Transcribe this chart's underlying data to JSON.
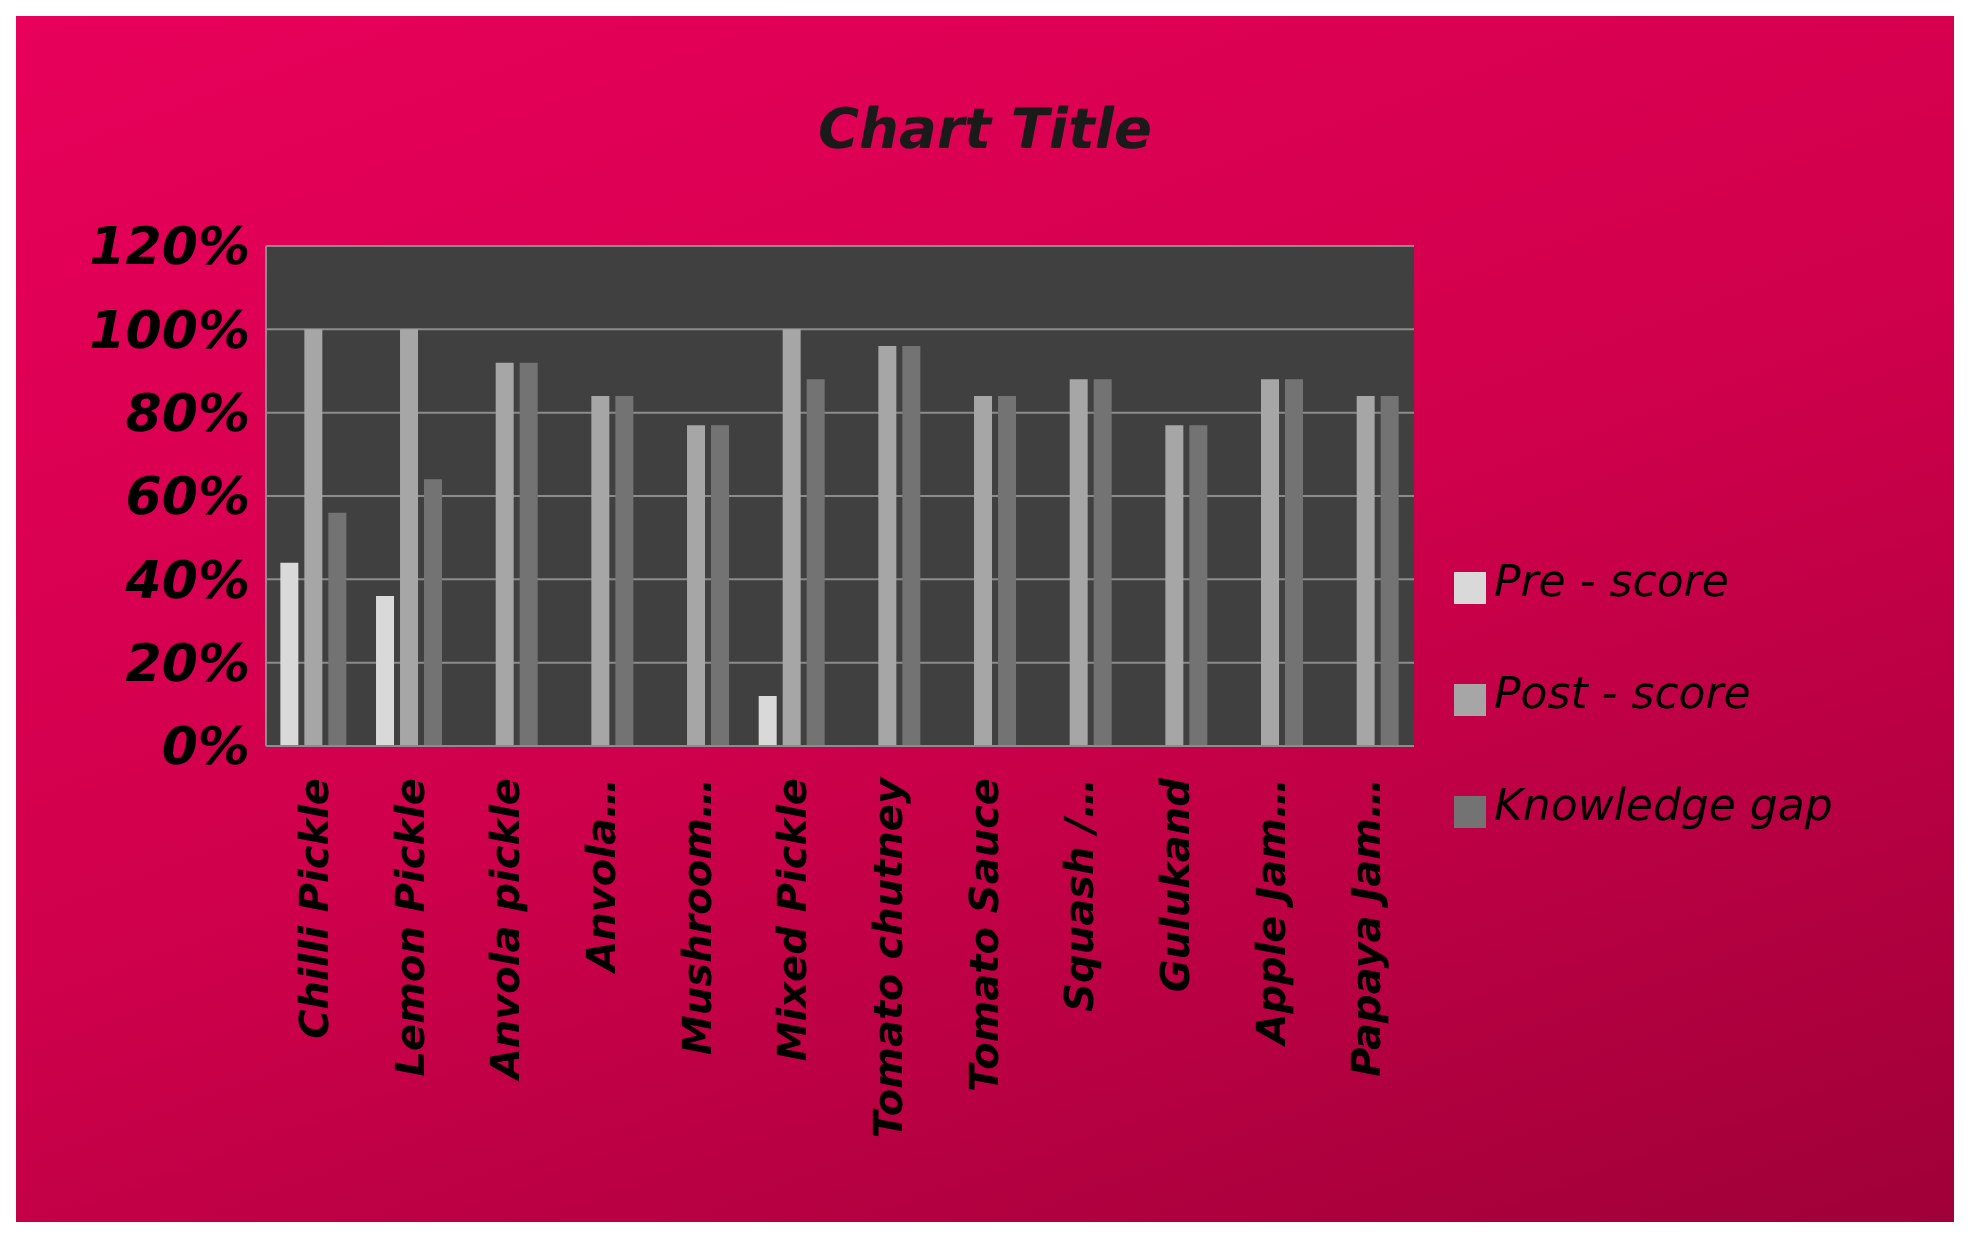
{
  "chart_data": {
    "type": "bar",
    "title": "Chart Title",
    "categories": [
      "Chilli Pickle",
      "Lemon Pickle",
      "Anvola pickle",
      "Anvola…",
      "Mushroom…",
      "Mixed Pickle",
      "Tomato chutney",
      "Tomato Sauce",
      "Squash /…",
      "Gulukand",
      "Apple Jam…",
      "Papaya Jam…"
    ],
    "series": [
      {
        "name": "Pre - score",
        "color": "#d9d9d9",
        "values": [
          44,
          36,
          0,
          0,
          0,
          12,
          0,
          0,
          0,
          0,
          0,
          0
        ]
      },
      {
        "name": "Post - score",
        "color": "#a6a6a6",
        "values": [
          100,
          100,
          92,
          84,
          77,
          100,
          96,
          84,
          88,
          77,
          88,
          84
        ]
      },
      {
        "name": "Knowledge gap",
        "color": "#737373",
        "values": [
          56,
          64,
          92,
          84,
          77,
          88,
          96,
          84,
          88,
          77,
          88,
          84
        ]
      }
    ],
    "ylim": [
      0,
      120
    ],
    "yticks": [
      {
        "value": 0,
        "label": "0%"
      },
      {
        "value": 20,
        "label": "20%"
      },
      {
        "value": 40,
        "label": "40%"
      },
      {
        "value": 60,
        "label": "60%"
      },
      {
        "value": 80,
        "label": "80%"
      },
      {
        "value": 100,
        "label": "100%"
      },
      {
        "value": 120,
        "label": "120%"
      }
    ],
    "grid": "y",
    "legend": "right"
  }
}
